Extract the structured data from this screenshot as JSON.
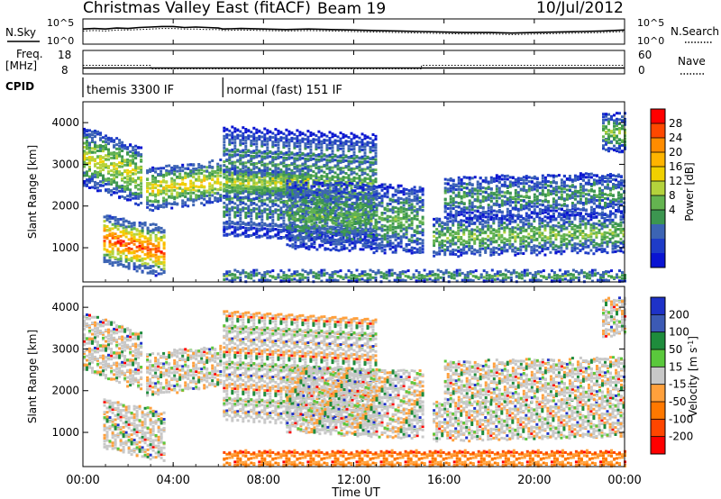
{
  "header": {
    "title": "Christmas Valley East (fitACF)",
    "beam": "Beam 19",
    "date": "10/Jul/2012"
  },
  "time_axis": {
    "xlabel": "Time UT",
    "ticks": [
      "00:00",
      "04:00",
      "08:00",
      "12:00",
      "16:00",
      "20:00",
      "00:00"
    ]
  },
  "colors": {
    "frame": "#000000",
    "dotted": "#000000"
  },
  "chart_data": [
    {
      "type": "line",
      "name_left": "N.Sky",
      "name_right": "N.Search",
      "yticks_left": [
        "10^5",
        "10^0"
      ],
      "yticks_right": [
        "10^5",
        "10^0"
      ],
      "x_hours": [
        0,
        0.5,
        1.0,
        1.5,
        2.0,
        2.5,
        3.0,
        3.5,
        4.0,
        4.5,
        5.0,
        5.5,
        6.0,
        6.2,
        7.0,
        8.0,
        9.0,
        10.0,
        11.0,
        12.0,
        13.0,
        14.0,
        15.0,
        16.0,
        17.0,
        18.0,
        19.0,
        20.0,
        21.0,
        22.0,
        23.0,
        24.0
      ],
      "series": [
        {
          "name": "N.Sky",
          "style": "solid",
          "values": [
            3.0,
            3.1,
            3.0,
            3.2,
            3.1,
            3.3,
            3.4,
            3.5,
            3.5,
            3.3,
            3.4,
            3.3,
            3.2,
            3.0,
            3.1,
            3.0,
            2.9,
            3.0,
            2.9,
            2.8,
            2.7,
            2.6,
            2.5,
            2.4,
            2.3,
            2.3,
            2.2,
            2.3,
            2.4,
            2.5,
            2.6,
            2.8
          ]
        },
        {
          "name": "N.Search",
          "style": "dotted",
          "values": [
            2.6,
            2.7,
            2.6,
            2.8,
            2.8,
            2.9,
            3.0,
            3.1,
            3.1,
            3.0,
            3.0,
            2.9,
            2.9,
            2.7,
            2.8,
            2.7,
            2.6,
            2.7,
            2.6,
            2.5,
            2.4,
            2.3,
            2.2,
            2.1,
            2.0,
            2.0,
            1.9,
            2.0,
            2.1,
            2.2,
            2.3,
            2.5
          ]
        }
      ]
    },
    {
      "type": "line",
      "label_left": [
        "Freq.",
        "[MHz]"
      ],
      "label_right": "Nave",
      "yticks_left": [
        "18",
        "8"
      ],
      "yticks_right": [
        "60",
        "0"
      ],
      "x_hours": [
        0,
        3.0,
        3.0,
        6.1,
        6.2,
        15.0,
        15.0,
        24.0
      ],
      "series": [
        {
          "name": "Freq",
          "style": "solid",
          "values": [
            10.5,
            10.5,
            10.5,
            10.5,
            10.5,
            10.5,
            10.5,
            10.5
          ]
        },
        {
          "name": "Nave",
          "style": "dotted",
          "values": [
            22,
            22,
            13,
            13,
            13,
            13,
            22,
            22
          ]
        }
      ]
    },
    {
      "type": "table",
      "label": "CPID",
      "segments": [
        {
          "text": "themis 3300 IF",
          "start_hour": 0,
          "end_hour": 6.1
        },
        {
          "text": "normal (fast) 151 IF",
          "start_hour": 6.2,
          "end_hour": 24
        }
      ]
    },
    {
      "type": "heatmap",
      "parameter": "power",
      "ylabel": "Slant Range [km]",
      "yticks": [
        "4000",
        "3000",
        "2000",
        "1000"
      ],
      "ylim": [
        180,
        4500
      ],
      "colorbar_label": "Power [dB]",
      "colorbar_ticks": [
        "28",
        "24",
        "20",
        "16",
        "12",
        "8",
        "4"
      ],
      "colorbar_colors": [
        "#ff0000",
        "#ff4800",
        "#ff8c00",
        "#ffb400",
        "#f0d000",
        "#b4d23c",
        "#64b450",
        "#3c9650",
        "#3c64b4",
        "#1e3cc8",
        "#0a14d2"
      ],
      "bands": [
        {
          "t0": 0.0,
          "t1": 2.6,
          "r0": 2500,
          "r1": 3900,
          "slope": -500,
          "level": 0.45
        },
        {
          "t0": 0.9,
          "t1": 3.6,
          "r0": 600,
          "r1": 1800,
          "slope": -300,
          "level": 0.75
        },
        {
          "t0": 2.8,
          "t1": 6.1,
          "r0": 1900,
          "r1": 2900,
          "slope": 200,
          "level": 0.5
        },
        {
          "t0": 6.2,
          "t1": 13.0,
          "r0": 1300,
          "r1": 3900,
          "slope": -200,
          "level": 0.3
        },
        {
          "t0": 6.2,
          "t1": 10.0,
          "r0": 2200,
          "r1": 2900,
          "slope": 0,
          "level": 0.45
        },
        {
          "t0": 9.0,
          "t1": 15.0,
          "r0": 1000,
          "r1": 2600,
          "slope": -150,
          "level": 0.3
        },
        {
          "t0": 15.5,
          "t1": 24.0,
          "r0": 800,
          "r1": 1700,
          "slope": 100,
          "level": 0.35
        },
        {
          "t0": 16.0,
          "t1": 24.0,
          "r0": 1700,
          "r1": 2700,
          "slope": 100,
          "level": 0.25
        },
        {
          "t0": 23.0,
          "t1": 24.0,
          "r0": 3300,
          "r1": 4200,
          "slope": 0,
          "level": 0.35
        },
        {
          "t0": 6.2,
          "t1": 24.0,
          "r0": 180,
          "r1": 450,
          "slope": 0,
          "level": 0.3
        }
      ]
    },
    {
      "type": "heatmap",
      "parameter": "velocity",
      "ylabel": "Slant Range [km]",
      "yticks": [
        "4000",
        "3000",
        "2000",
        "1000"
      ],
      "ylim": [
        180,
        4500
      ],
      "xlabel": "Time UT",
      "colorbar_label": "Velocity [m s^-1]",
      "colorbar_ticks": [
        "200",
        "100",
        "50",
        "15",
        "-15",
        "-50",
        "-100",
        "-200"
      ],
      "colorbar_colors": [
        "#1e32c8",
        "#3c5ab4",
        "#1e8c3c",
        "#5ac83c",
        "#c8c8c8",
        "#ffa03c",
        "#ff7800",
        "#ff4600",
        "#ff0000"
      ],
      "bands": [
        {
          "t0": 0.0,
          "t1": 2.6,
          "r0": 2500,
          "r1": 3900,
          "slope": -500,
          "level": 0.45
        },
        {
          "t0": 0.9,
          "t1": 3.6,
          "r0": 600,
          "r1": 1800,
          "slope": -300,
          "level": 0.5
        },
        {
          "t0": 2.8,
          "t1": 6.1,
          "r0": 1900,
          "r1": 2900,
          "slope": 200,
          "level": 0.55
        },
        {
          "t0": 6.2,
          "t1": 13.0,
          "r0": 1300,
          "r1": 3900,
          "slope": -200,
          "level": 0.45
        },
        {
          "t0": 9.0,
          "t1": 15.0,
          "r0": 1000,
          "r1": 2600,
          "slope": -150,
          "level": 0.45
        },
        {
          "t0": 15.5,
          "t1": 24.0,
          "r0": 800,
          "r1": 1700,
          "slope": 100,
          "level": 0.45
        },
        {
          "t0": 16.0,
          "t1": 24.0,
          "r0": 1700,
          "r1": 2700,
          "slope": 100,
          "level": 0.45
        },
        {
          "t0": 23.0,
          "t1": 24.0,
          "r0": 3300,
          "r1": 4200,
          "slope": 0,
          "level": 0.45
        },
        {
          "t0": 6.2,
          "t1": 24.0,
          "r0": 180,
          "r1": 550,
          "slope": 0,
          "level": 0.7
        }
      ]
    }
  ]
}
